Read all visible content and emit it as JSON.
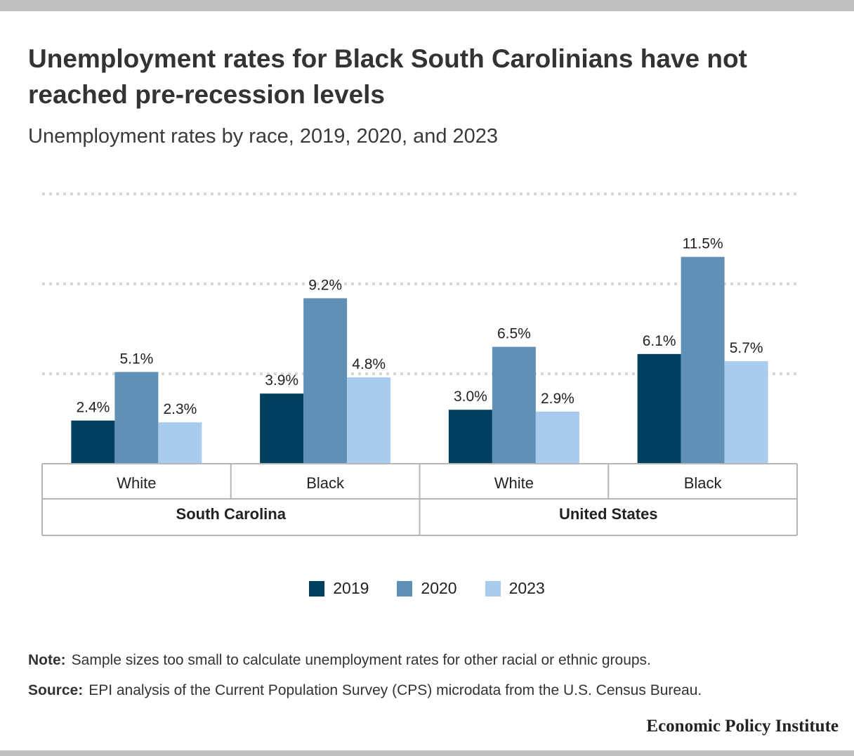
{
  "title": "Unemployment rates for Black South Carolinians have not reached pre-recession levels",
  "subtitle": "Unemployment rates by race, 2019, 2020, and 2023",
  "chart_data": {
    "type": "bar",
    "groups": [
      {
        "label": "South Carolina",
        "categories": [
          "White",
          "Black"
        ]
      },
      {
        "label": "United States",
        "categories": [
          "White",
          "Black"
        ]
      }
    ],
    "categories": [
      "White",
      "Black",
      "White",
      "Black"
    ],
    "series": [
      {
        "name": "2019",
        "color": "#00405f",
        "values": [
          2.4,
          3.9,
          3.0,
          6.1
        ],
        "labels": [
          "2.4%",
          "3.9%",
          "3.0%",
          "6.1%"
        ]
      },
      {
        "name": "2020",
        "color": "#6090b5",
        "values": [
          5.1,
          9.2,
          6.5,
          11.5
        ],
        "labels": [
          "5.1%",
          "9.2%",
          "6.5%",
          "11.5%"
        ]
      },
      {
        "name": "2023",
        "color": "#a9ccee",
        "values": [
          2.3,
          4.8,
          2.9,
          5.7
        ],
        "labels": [
          "2.3%",
          "4.8%",
          "2.9%",
          "5.7%"
        ]
      }
    ],
    "ylim": [
      0,
      15
    ],
    "gridlines": [
      5,
      10,
      15
    ],
    "grid": "dotted",
    "legend": "bottom-center",
    "xlabel": "",
    "ylabel": ""
  },
  "legend_items": [
    {
      "name": "2019",
      "color": "#00405f"
    },
    {
      "name": "2020",
      "color": "#6090b5"
    },
    {
      "name": "2023",
      "color": "#a9ccee"
    }
  ],
  "note": {
    "label": "Note:",
    "text": "Sample sizes too small to calculate unemployment rates for other racial or ethnic groups."
  },
  "source": {
    "label": "Source:",
    "text": "EPI analysis of the Current Population Survey (CPS) microdata from the U.S. Census Bureau."
  },
  "brand": "Economic Policy Institute"
}
